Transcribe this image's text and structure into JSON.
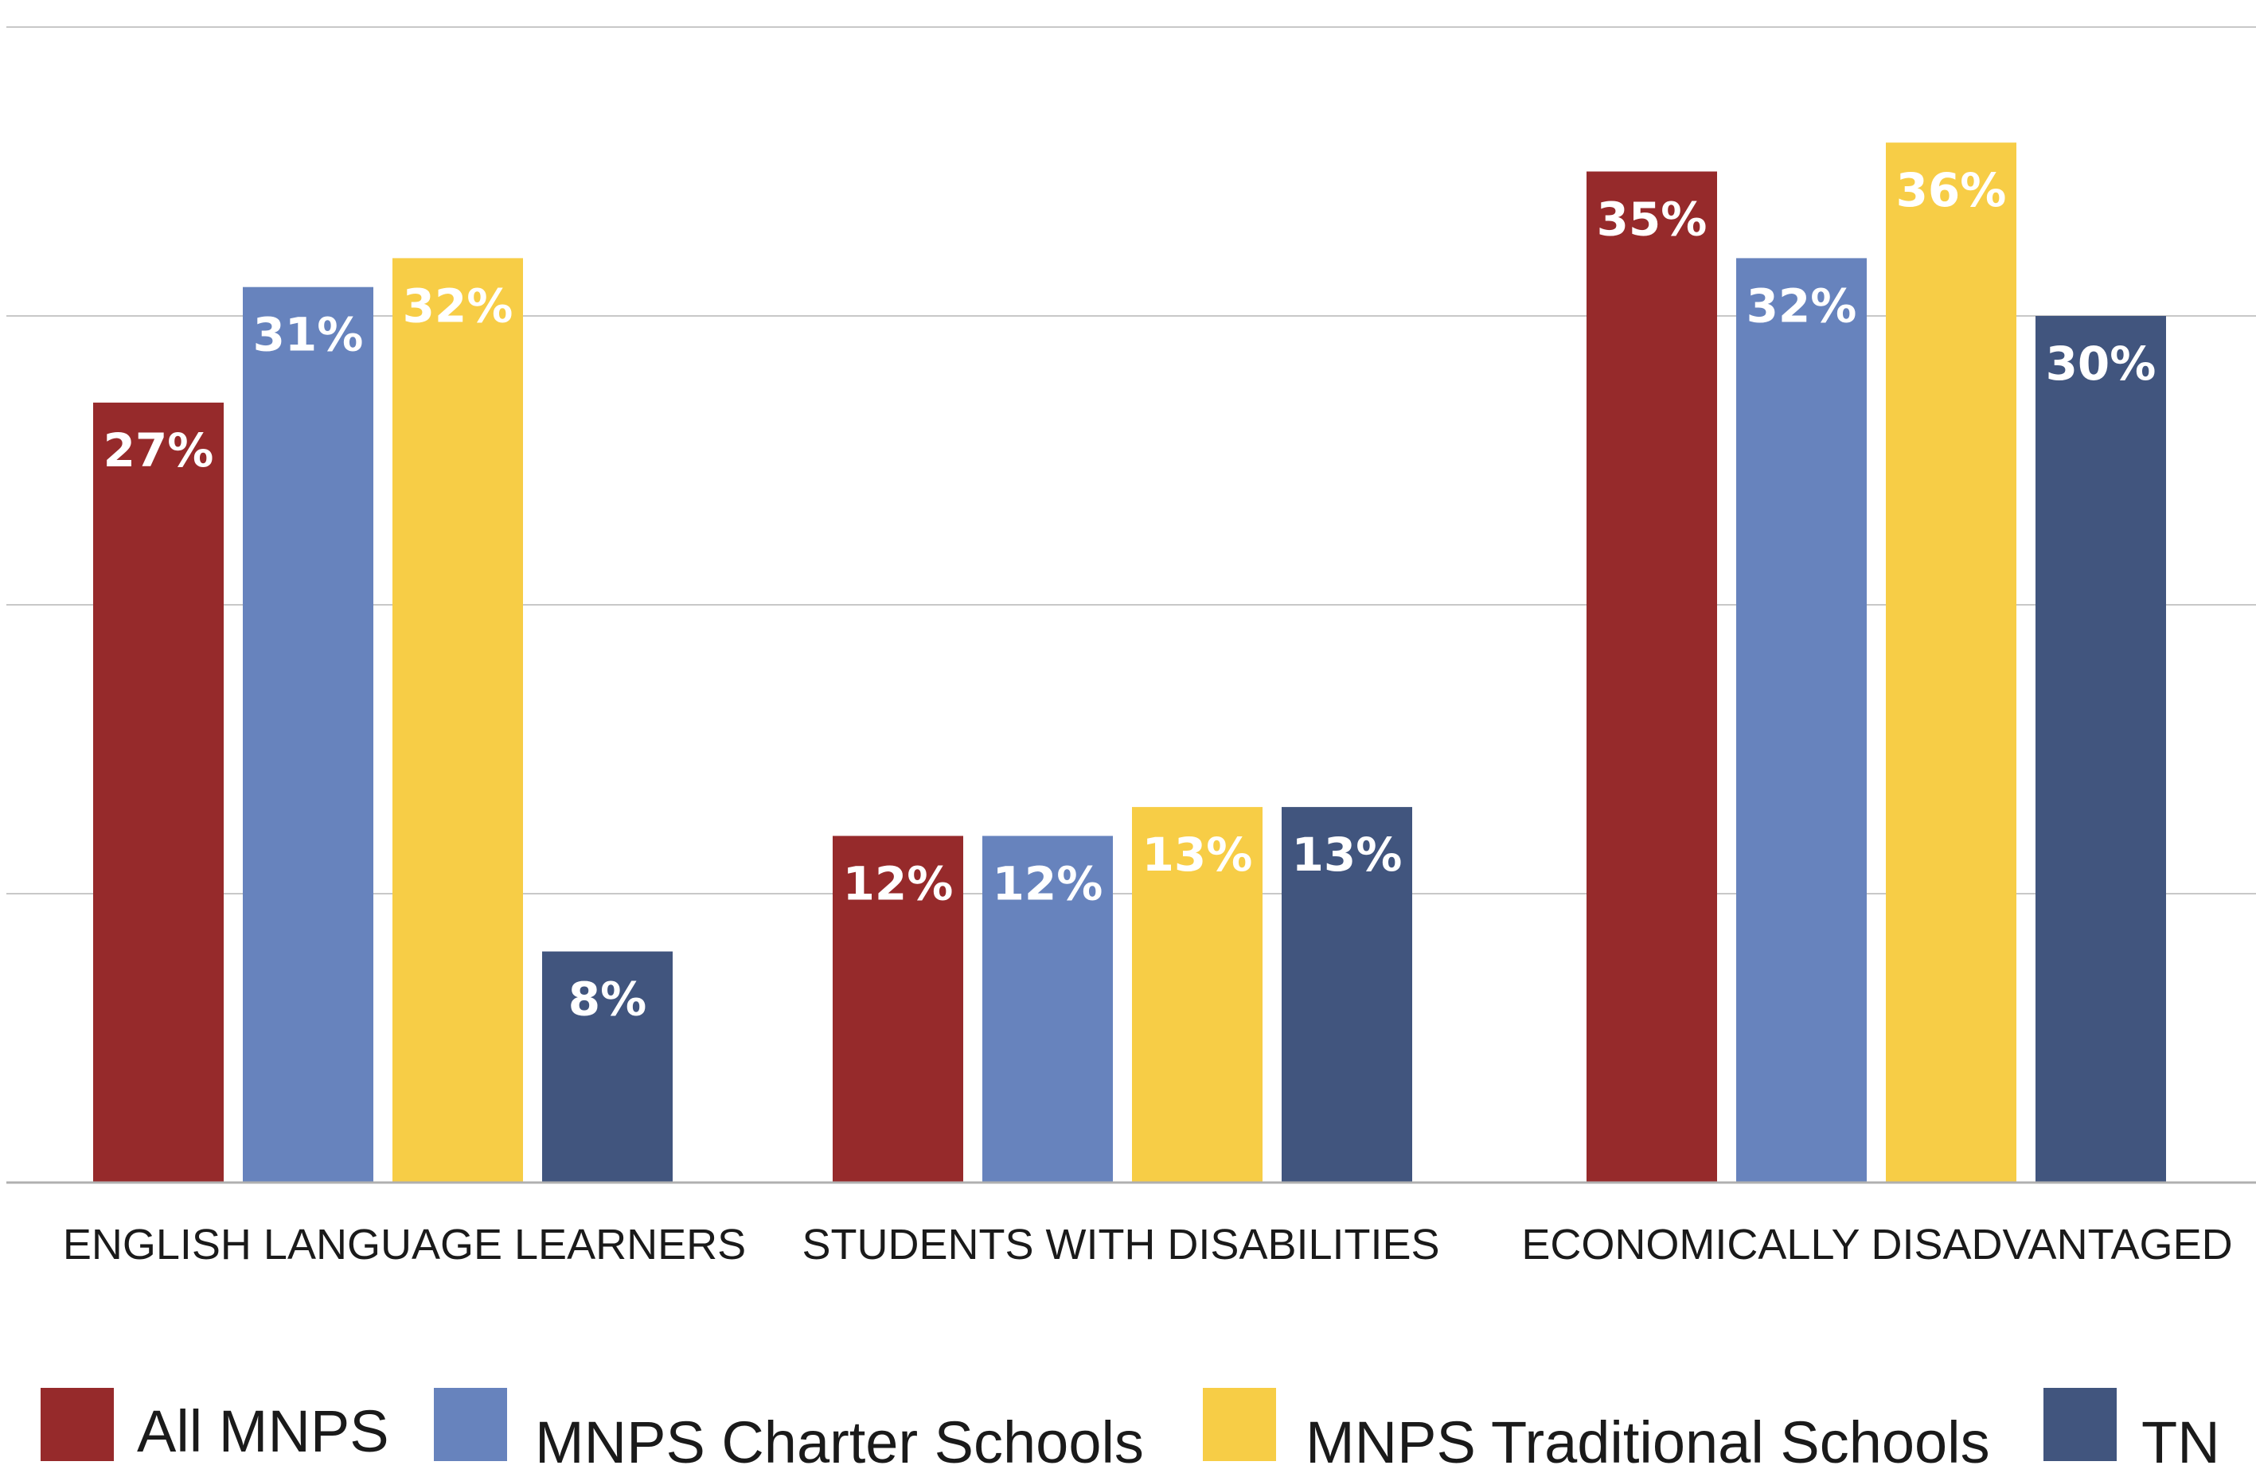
{
  "chart_data": {
    "type": "bar",
    "categories": [
      "ENGLISH LANGUAGE LEARNERS",
      "STUDENTS WITH DISABILITIES",
      "ECONOMICALLY DISADVANTAGED"
    ],
    "series": [
      {
        "name": "All MNPS",
        "color": "#962a2b",
        "values": [
          27,
          12,
          35
        ],
        "labels": [
          "27%",
          "12%",
          "35%"
        ]
      },
      {
        "name": "MNPS Charter Schools",
        "color": "#6783bd",
        "values": [
          31,
          12,
          32
        ],
        "labels": [
          "31%",
          "12%",
          "32%"
        ]
      },
      {
        "name": "MNPS Traditional Schools",
        "color": "#f7cd46",
        "values": [
          32,
          13,
          36
        ],
        "labels": [
          "32%",
          "13%",
          "36%"
        ]
      },
      {
        "name": "TN",
        "color": "#41557e",
        "values": [
          8,
          13,
          30
        ],
        "labels": [
          "8%",
          "13%",
          "30%"
        ]
      }
    ],
    "ylim": [
      0,
      40
    ],
    "gridlines": [
      10,
      20,
      30,
      40
    ],
    "grid": true,
    "legend_position": "bottom"
  }
}
